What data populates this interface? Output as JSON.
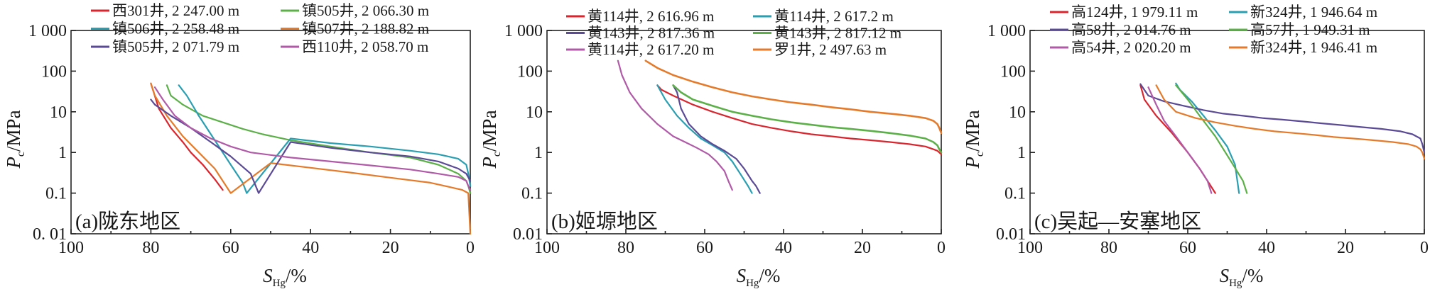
{
  "chart_data": [
    {
      "type": "line",
      "panel_label": "(a)陇东地区",
      "xlabel": "S_Hg/%",
      "ylabel": "Pc/MPa",
      "x_reversed": true,
      "xlim": [
        100,
        0
      ],
      "ylim": [
        0.01,
        1000
      ],
      "y_scale": "log",
      "grid": false,
      "legend_position": "top",
      "x_ticks": [
        "100",
        "80",
        "60",
        "40",
        "20",
        "0"
      ],
      "y_ticks": [
        "1 000",
        "100",
        "10",
        "1",
        "0.1",
        "0. 01"
      ],
      "series": [
        {
          "name": "西301井, 2 247.00  m",
          "color": "#d9262e",
          "x": [
            80,
            78,
            75,
            72,
            70,
            67,
            64,
            62
          ],
          "y": [
            50,
            12,
            4,
            1.8,
            1,
            0.5,
            0.22,
            0.12
          ]
        },
        {
          "name": "镇505井, 2 066.30  m",
          "color": "#5cb048",
          "x": [
            76,
            75,
            72,
            67,
            62,
            57,
            52,
            45,
            35,
            25,
            15,
            8,
            3,
            1,
            0.5,
            0
          ],
          "y": [
            45,
            25,
            15,
            8,
            5.5,
            3.8,
            2.8,
            2,
            1.4,
            1,
            0.75,
            0.5,
            0.3,
            0.2,
            0.15,
            0.1
          ]
        },
        {
          "name": "镇506井, 2 258.48  m",
          "color": "#2a9fb2",
          "x": [
            73,
            71,
            68,
            64,
            60,
            57,
            56,
            45,
            35,
            25,
            15,
            8,
            3,
            1,
            0.5,
            0
          ],
          "y": [
            45,
            25,
            8,
            2,
            0.5,
            0.18,
            0.1,
            2.2,
            1.7,
            1.4,
            1.1,
            0.9,
            0.7,
            0.5,
            0.3,
            0.15
          ]
        },
        {
          "name": "镇507井, 2 188.82  m",
          "color": "#e57b2a",
          "x": [
            80,
            79,
            76,
            72,
            68,
            64,
            60,
            50,
            40,
            30,
            20,
            10,
            5,
            2,
            0.5,
            0
          ],
          "y": [
            50,
            25,
            8,
            2.5,
            1,
            0.4,
            0.1,
            0.55,
            0.42,
            0.32,
            0.24,
            0.18,
            0.14,
            0.12,
            0.1,
            0.01
          ]
        },
        {
          "name": "镇505井, 2 071.79  m",
          "color": "#5b4b97",
          "x": [
            80,
            79,
            75,
            70,
            65,
            60,
            55,
            53,
            45,
            35,
            25,
            15,
            8,
            3,
            1,
            0
          ],
          "y": [
            20,
            15,
            8,
            4,
            1.8,
            0.8,
            0.3,
            0.1,
            1.8,
            1.3,
            1,
            0.8,
            0.6,
            0.4,
            0.3,
            0.2
          ]
        },
        {
          "name": "西110井, 2 058.70  m",
          "color": "#b05aa8",
          "x": [
            79,
            77,
            74,
            70,
            65,
            60,
            55,
            45,
            35,
            25,
            15,
            8,
            3,
            1,
            0.5,
            0
          ],
          "y": [
            40,
            20,
            8,
            4,
            2.2,
            1.4,
            1,
            0.75,
            0.6,
            0.48,
            0.38,
            0.3,
            0.25,
            0.2,
            0.15,
            0.12
          ]
        }
      ]
    },
    {
      "type": "line",
      "panel_label": "(b)姬塬地区",
      "xlabel": "S_Hg/%",
      "ylabel": "Pc/MPa",
      "x_reversed": true,
      "xlim": [
        100,
        0
      ],
      "ylim": [
        0.01,
        1000
      ],
      "y_scale": "log",
      "grid": false,
      "legend_position": "top",
      "x_ticks": [
        "100",
        "80",
        "60",
        "40",
        "20",
        "0"
      ],
      "y_ticks": [
        "1 000",
        "100",
        "10",
        "1",
        "0.1",
        "0.01"
      ],
      "series": [
        {
          "name": "黄114井, 2 616.96  m",
          "color": "#d9262e",
          "x": [
            72,
            71,
            68,
            63,
            58,
            53,
            48,
            43,
            38,
            33,
            28,
            23,
            18,
            13,
            8,
            4,
            2,
            1,
            0.5,
            0
          ],
          "y": [
            45,
            35,
            25,
            15,
            10,
            7,
            5,
            4,
            3.3,
            2.8,
            2.5,
            2.2,
            2,
            1.8,
            1.6,
            1.4,
            1.2,
            1.1,
            1,
            0.9
          ]
        },
        {
          "name": "黄114井, 2 617.2  m",
          "color": "#2a9fb2",
          "x": [
            72,
            70,
            67,
            64,
            61,
            58,
            55,
            53,
            51,
            49,
            48
          ],
          "y": [
            45,
            20,
            8,
            4,
            2.2,
            1.5,
            1,
            0.6,
            0.3,
            0.15,
            0.1
          ]
        },
        {
          "name": "黄143井, 2 817.36  m",
          "color": "#5b4b97",
          "x": [
            68,
            67,
            66,
            64,
            61,
            58,
            55,
            52,
            50,
            48,
            47,
            46
          ],
          "y": [
            45,
            30,
            12,
            5,
            2.5,
            1.6,
            1.1,
            0.7,
            0.4,
            0.2,
            0.15,
            0.1
          ]
        },
        {
          "name": "黄143井, 2 817.12  m",
          "color": "#5cb048",
          "x": [
            68,
            66,
            63,
            58,
            53,
            48,
            43,
            38,
            33,
            28,
            23,
            18,
            13,
            8,
            4,
            2,
            1,
            0.5,
            0
          ],
          "y": [
            45,
            30,
            20,
            14,
            10,
            8,
            6.5,
            5.5,
            4.8,
            4.2,
            3.8,
            3.4,
            3,
            2.6,
            2.2,
            1.8,
            1.5,
            1.2,
            1
          ]
        },
        {
          "name": "黄114井, 2 617.20  m",
          "color": "#b05aa8",
          "x": [
            82,
            81,
            79,
            76,
            72,
            68,
            65,
            62,
            59,
            57,
            55,
            54,
            53
          ],
          "y": [
            180,
            80,
            30,
            12,
            5,
            2.5,
            1.8,
            1.3,
            0.9,
            0.6,
            0.35,
            0.2,
            0.12
          ]
        },
        {
          "name": "罗1井, 2 497.63  m",
          "color": "#e57b2a",
          "x": [
            75,
            72,
            68,
            63,
            58,
            53,
            48,
            43,
            38,
            33,
            28,
            23,
            18,
            13,
            8,
            4,
            2,
            1,
            0.5,
            0
          ],
          "y": [
            180,
            120,
            80,
            55,
            40,
            30,
            24,
            20,
            17,
            15,
            13,
            11.5,
            10,
            9,
            8,
            7,
            6,
            5,
            4,
            3
          ]
        }
      ]
    },
    {
      "type": "line",
      "panel_label": "(c)吴起—安塞地区",
      "xlabel": "S_Hg/%",
      "ylabel": "Pc/MPa",
      "x_reversed": true,
      "xlim": [
        100,
        0
      ],
      "ylim": [
        0.01,
        1000
      ],
      "y_scale": "log",
      "grid": false,
      "legend_position": "top",
      "x_ticks": [
        "100",
        "80",
        "60",
        "40",
        "20",
        "0"
      ],
      "y_ticks": [
        "1 000",
        "100",
        "10",
        "1",
        "0.1",
        "0.01"
      ],
      "series": [
        {
          "name": "高124井, 1 979.11  m",
          "color": "#d9262e",
          "x": [
            72,
            71,
            68,
            64,
            60,
            57,
            55,
            53
          ],
          "y": [
            45,
            20,
            8,
            3,
            1,
            0.4,
            0.2,
            0.1
          ]
        },
        {
          "name": "新324井, 1 946.64  m",
          "color": "#2a9fb2",
          "x": [
            63,
            62,
            59,
            56,
            53,
            50,
            48,
            47
          ],
          "y": [
            50,
            35,
            18,
            8,
            3.5,
            1.4,
            0.5,
            0.1
          ]
        },
        {
          "name": "高58井, 2 014.76  m",
          "color": "#5b4b97",
          "x": [
            72,
            70,
            66,
            61,
            56,
            51,
            46,
            41,
            36,
            31,
            26,
            21,
            16,
            11,
            6,
            3,
            1,
            0.5,
            0
          ],
          "y": [
            48,
            25,
            18,
            14,
            11,
            9,
            8,
            7,
            6.4,
            5.8,
            5.2,
            4.7,
            4.2,
            3.8,
            3.3,
            2.8,
            2.2,
            1.6,
            1
          ]
        },
        {
          "name": "高57井, 1 949.31  m",
          "color": "#5cb048",
          "x": [
            63,
            60,
            57,
            53,
            49,
            46,
            45
          ],
          "y": [
            45,
            20,
            8,
            2.5,
            0.6,
            0.2,
            0.1
          ]
        },
        {
          "name": "高54井, 2 020.20  m",
          "color": "#b05aa8",
          "x": [
            70,
            68,
            66,
            63,
            60,
            57,
            55,
            54
          ],
          "y": [
            40,
            15,
            6,
            2.5,
            1,
            0.4,
            0.2,
            0.1
          ]
        },
        {
          "name": "新324井, 1 946.41  m",
          "color": "#e57b2a",
          "x": [
            68,
            66,
            63,
            58,
            53,
            48,
            43,
            38,
            33,
            28,
            23,
            18,
            13,
            8,
            4,
            2,
            1,
            0.5,
            0
          ],
          "y": [
            45,
            20,
            10,
            7,
            5.5,
            4.5,
            3.8,
            3.3,
            3,
            2.7,
            2.4,
            2.2,
            2,
            1.8,
            1.6,
            1.4,
            1.2,
            1,
            0.7
          ]
        }
      ]
    }
  ]
}
